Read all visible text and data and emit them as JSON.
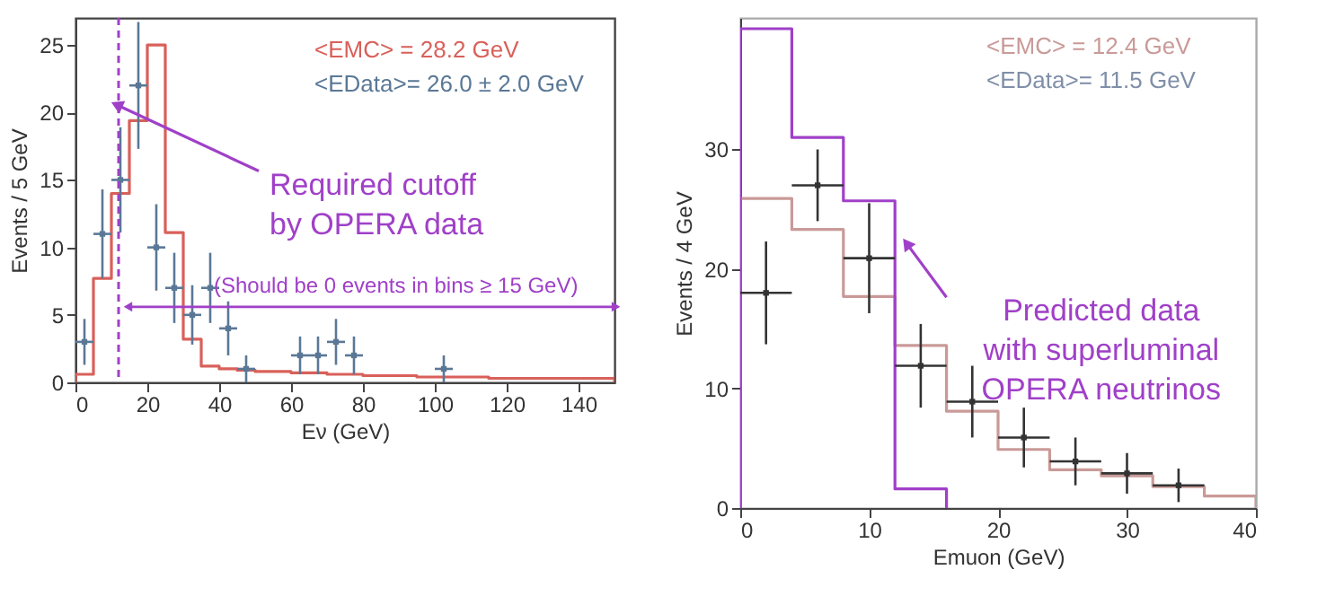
{
  "chart_data": [
    {
      "type": "histogram",
      "xlabel": "Eν (GeV)",
      "ylabel": "Events / 5 GeV",
      "xlim": [
        0,
        150
      ],
      "xticks": [
        0,
        20,
        40,
        60,
        80,
        100,
        120,
        140
      ],
      "ylim": [
        0,
        27
      ],
      "yticks": [
        0,
        5,
        10,
        15,
        20,
        25
      ],
      "series": [
        {
          "type": "histogram",
          "color": "#d9605a",
          "bins": [
            0,
            5,
            10,
            15,
            20,
            25,
            30,
            35,
            40,
            45,
            50,
            55,
            60,
            65,
            70,
            75,
            80,
            85,
            90,
            95,
            100,
            105,
            110,
            115,
            120,
            125,
            130,
            135,
            140,
            145,
            150
          ],
          "values": [
            0.6,
            7.7,
            14,
            19.4,
            25,
            11.1,
            3.2,
            1.2,
            1.0,
            0.9,
            0.8,
            0.8,
            0.7,
            0.7,
            0.6,
            0.6,
            0.5,
            0.5,
            0.5,
            0.4,
            0.4,
            0.4,
            0.4,
            0.3,
            0.3,
            0.3,
            0.3,
            0.3,
            0.3,
            0.3
          ]
        },
        {
          "type": "scatter",
          "color": "#5a7896",
          "x": [
            2.5,
            7.5,
            12.5,
            17.5,
            22.5,
            27.5,
            32.5,
            37.5,
            42.5,
            47.5,
            62.5,
            67.5,
            72.5,
            77.5,
            102.5
          ],
          "values": [
            3,
            11,
            15,
            22,
            10,
            7,
            5,
            7,
            4,
            1,
            2,
            2,
            3,
            2,
            1
          ],
          "errors": [
            1.7,
            3.3,
            3.9,
            4.7,
            3.2,
            2.6,
            2.2,
            2.6,
            2,
            1,
            1.4,
            1.4,
            1.7,
            1.4,
            1
          ],
          "xerrors": [
            2.5,
            2.5,
            2.5,
            2.5,
            2.5,
            2.5,
            2.5,
            2.5,
            2.5,
            2.5,
            2.5,
            2.5,
            2.5,
            2.5,
            2.5
          ]
        },
        {
          "type": "line",
          "color": "#a040c8",
          "x": [
            15,
            150
          ],
          "values": [
            5.6,
            5.6
          ],
          "marker": "triangle"
        }
      ],
      "ref_lines": [
        {
          "axis": "x",
          "value": 12,
          "color": "#a040c8",
          "line_style": "dashed"
        }
      ],
      "annotations": [
        "<EMC> = 28.2 GeV",
        "<EData>= 26.0 ± 2.0 GeV",
        {
          "text": "Required cutoff\nby OPERA data",
          "x": 12,
          "y": 20.5
        },
        "(Should be 0 events in bins ≥ 15 GeV)"
      ]
    },
    {
      "type": "histogram",
      "xlabel": "Emuon (GeV)",
      "ylabel": "Events / 4 GeV",
      "xlim": [
        0,
        40
      ],
      "xticks": [
        0,
        10,
        20,
        30,
        40
      ],
      "ylim": [
        0,
        41
      ],
      "yticks": [
        0,
        10,
        20,
        30
      ],
      "series": [
        {
          "type": "histogram",
          "color": "#c99a98",
          "bins": [
            0,
            4,
            8,
            12,
            16,
            20,
            24,
            28,
            32,
            36,
            40
          ],
          "values": [
            25.9,
            23.3,
            17.7,
            13.6,
            8.1,
            4.9,
            3.2,
            2.7,
            1.8,
            1.0
          ]
        },
        {
          "type": "histogram",
          "color": "#a040c8",
          "bins": [
            0,
            4,
            8,
            12,
            16
          ],
          "values": [
            40.1,
            31.0,
            25.7,
            1.6
          ]
        },
        {
          "type": "scatter",
          "color": "#333333",
          "x": [
            2,
            6,
            10,
            14,
            18,
            22,
            26,
            30,
            34
          ],
          "values": [
            18,
            27,
            20.9,
            11.9,
            8.9,
            5.9,
            3.9,
            2.9,
            1.9
          ],
          "errors": [
            4.3,
            3,
            4.6,
            3.5,
            3,
            2.5,
            2,
            1.7,
            1.4
          ],
          "xerrors": [
            2,
            2,
            2,
            2,
            2,
            2,
            2,
            2,
            2
          ]
        }
      ],
      "annotations": [
        "<EMC> = 12.4 GeV",
        "<EData>= 11.5 GeV",
        {
          "text": "Predicted data\nwith superluminal\nOPERA neutrinos",
          "x": 13,
          "y": 22
        }
      ]
    }
  ]
}
